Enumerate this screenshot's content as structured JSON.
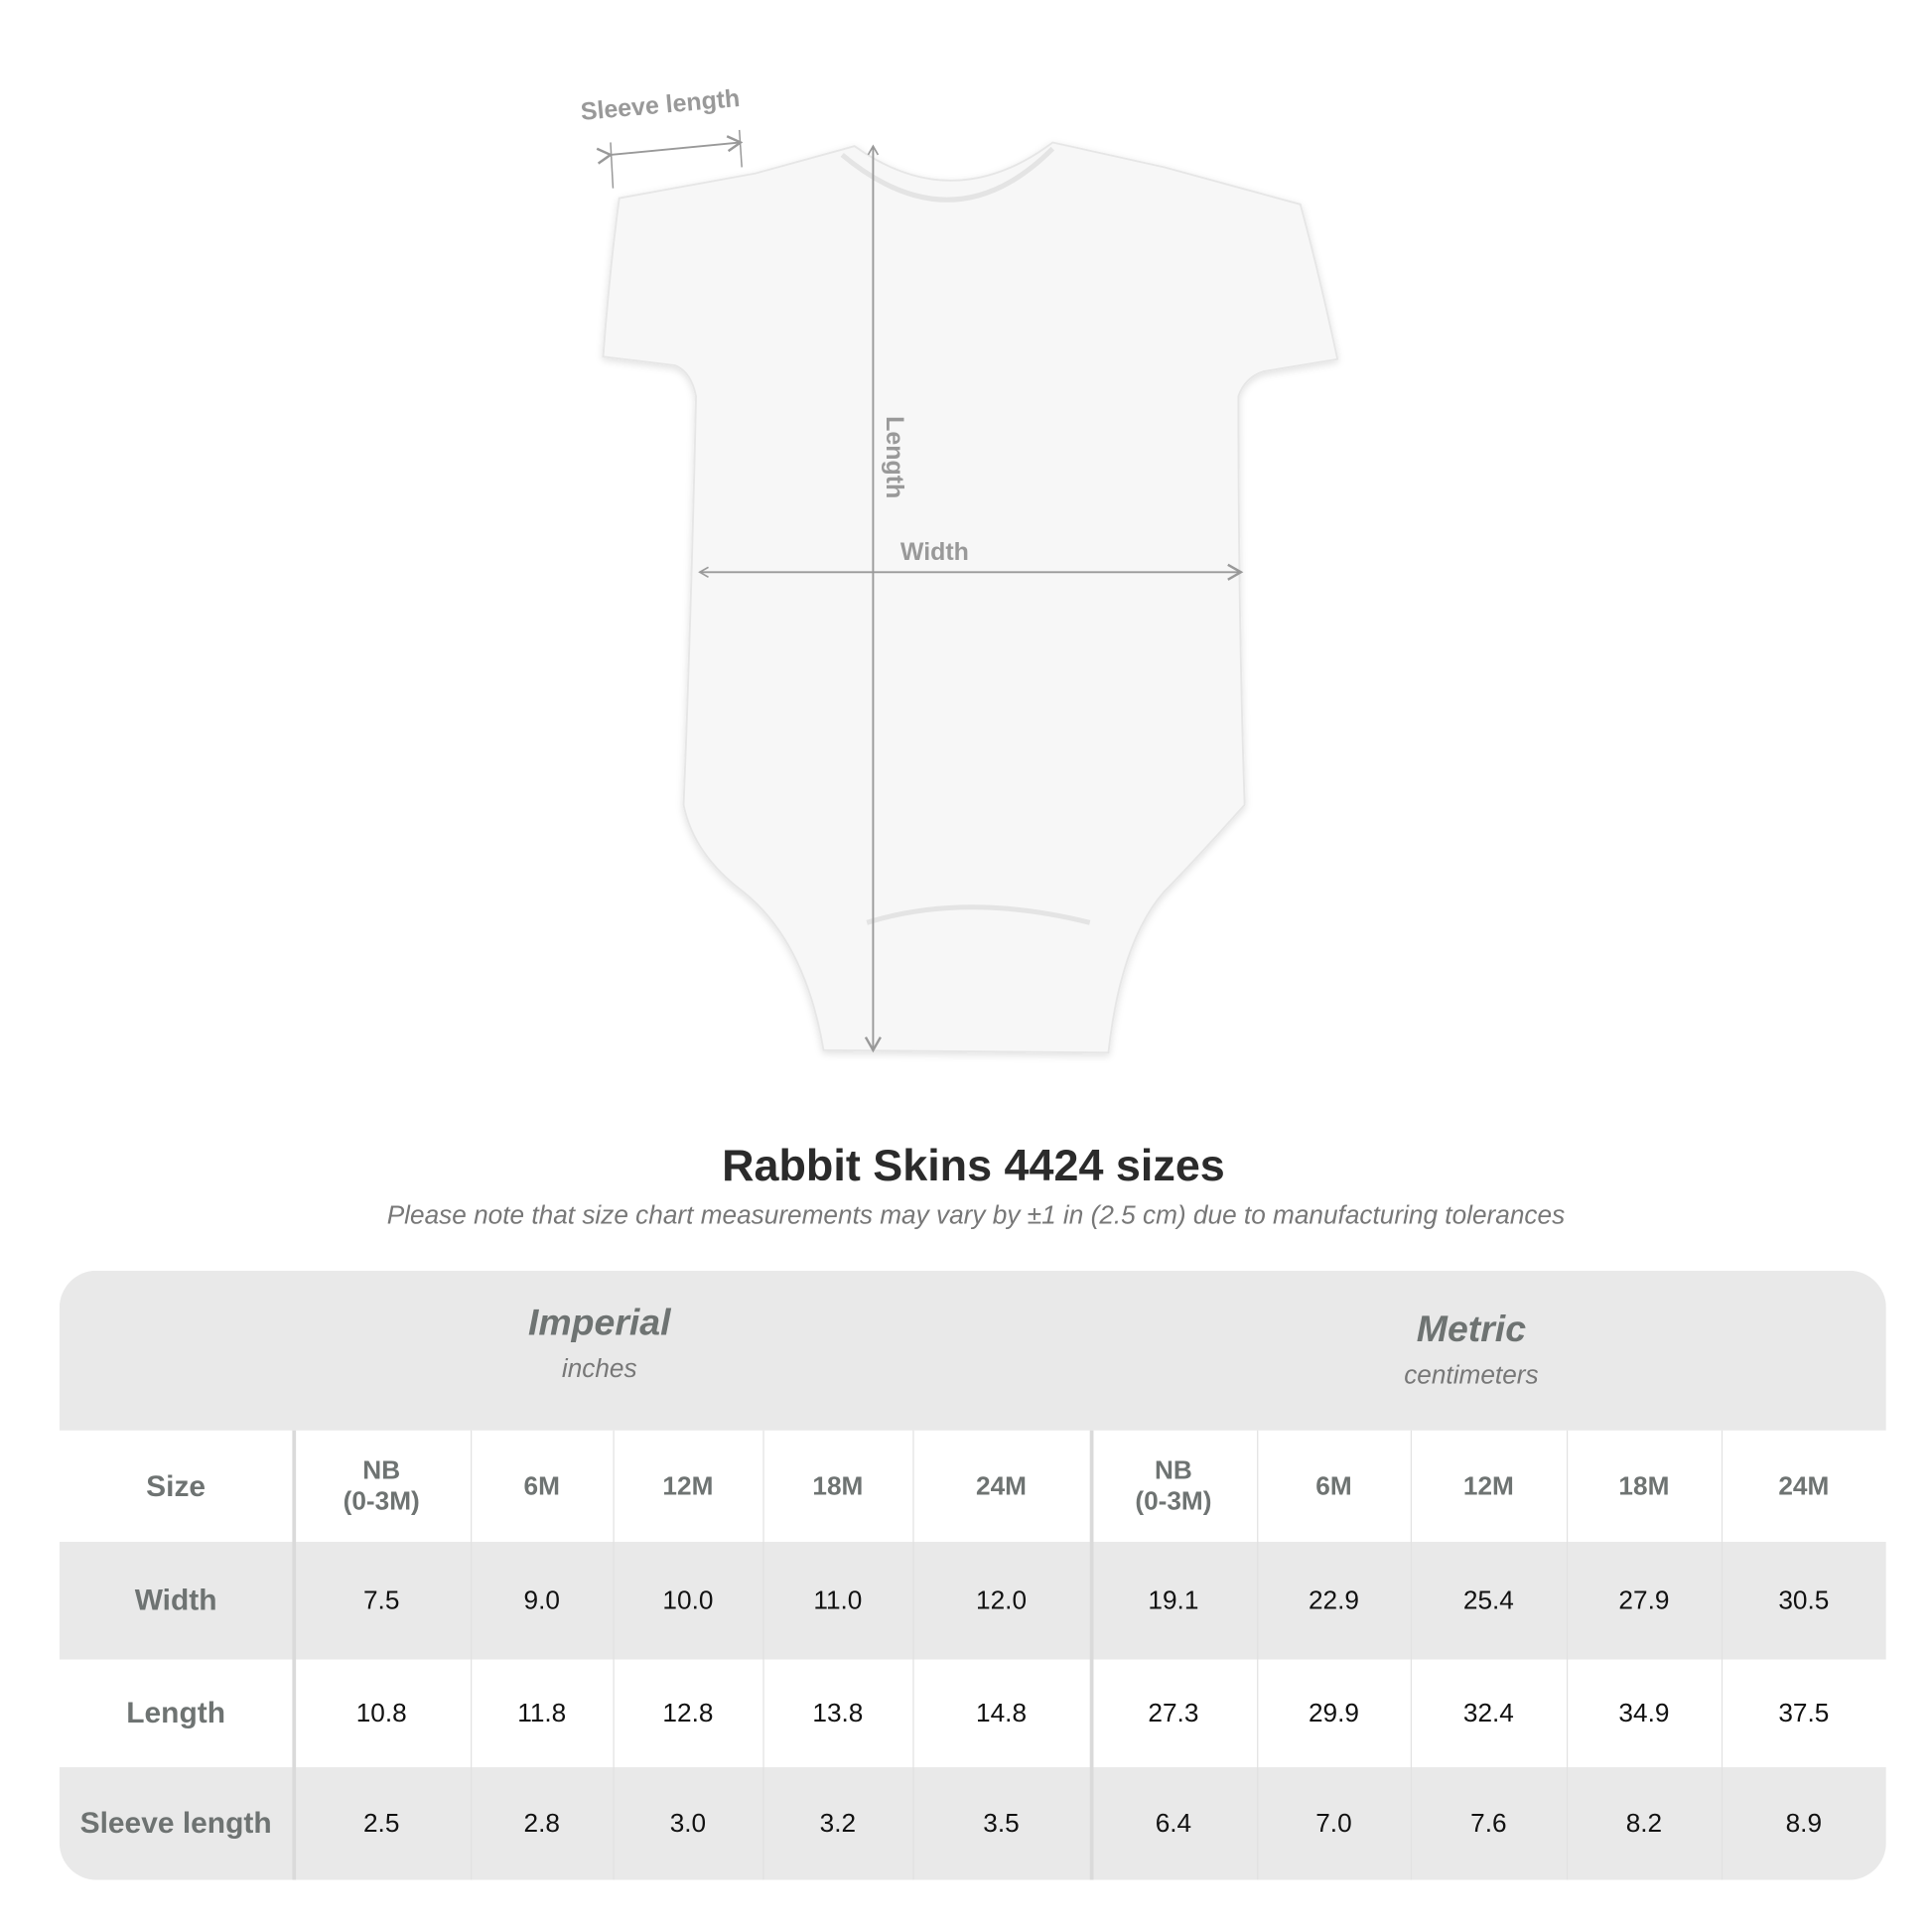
{
  "diagram": {
    "sleeve_label": "Sleeve length",
    "length_label": "Length",
    "width_label": "Width"
  },
  "title": "Rabbit Skins 4424 sizes",
  "subtitle": "Please note that size chart measurements may vary by ±1 in (2.5 cm) due to manufacturing tolerances",
  "table": {
    "imperial": {
      "label": "Imperial",
      "unit": "inches"
    },
    "metric": {
      "label": "Metric",
      "unit": "centimeters"
    },
    "size_label": "Size",
    "sizes": [
      "NB\n(0-3M)",
      "6M",
      "12M",
      "18M",
      "24M",
      "NB\n(0-3M)",
      "6M",
      "12M",
      "18M",
      "24M"
    ],
    "rows": [
      {
        "label": "Width",
        "values": [
          "7.5",
          "9.0",
          "10.0",
          "11.0",
          "12.0",
          "19.1",
          "22.9",
          "25.4",
          "27.9",
          "30.5"
        ]
      },
      {
        "label": "Length",
        "values": [
          "10.8",
          "11.8",
          "12.8",
          "13.8",
          "14.8",
          "27.3",
          "29.9",
          "32.4",
          "34.9",
          "37.5"
        ]
      },
      {
        "label": "Sleeve length",
        "values": [
          "2.5",
          "2.8",
          "3.0",
          "3.2",
          "3.5",
          "6.4",
          "7.0",
          "7.6",
          "8.2",
          "8.9"
        ]
      }
    ]
  },
  "colors": {
    "band": "#e9e9e9",
    "label_text": "#6e7372"
  }
}
